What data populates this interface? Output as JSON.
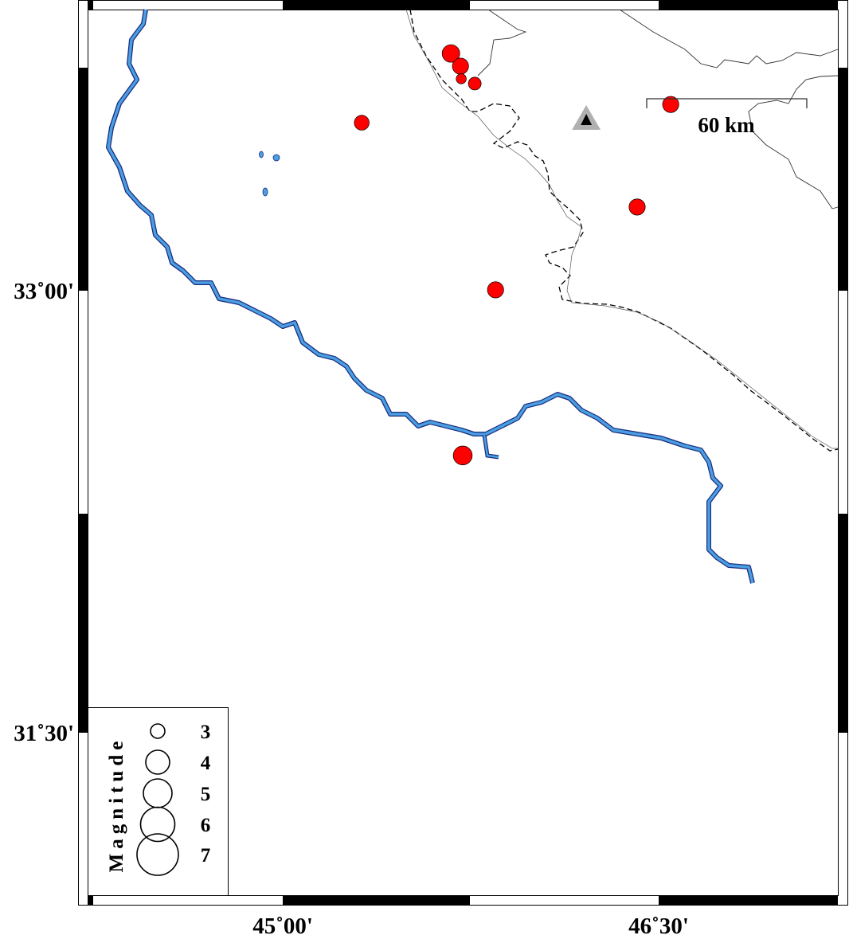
{
  "map": {
    "region": {
      "lon_min": 44.221,
      "lon_max": 47.215,
      "lat_min": 30.949,
      "lat_max": 33.954
    },
    "x_ticks": [
      {
        "lon": 45.0,
        "label": "45˚00'"
      },
      {
        "lon": 46.5,
        "label": "46˚30'"
      }
    ],
    "y_ticks": [
      {
        "lat": 33.0,
        "label": "33˚00'"
      },
      {
        "lat": 31.5,
        "label": "31˚30'"
      }
    ],
    "scale_bar": {
      "label": "60 km"
    },
    "colors": {
      "event": "#ff0000",
      "river": "#4a9fe0",
      "river_edge": "#1a2a80",
      "station": "#b0b0b0"
    },
    "station": {
      "lon": 46.211,
      "lat": 33.581,
      "icon": "triangle"
    },
    "events": [
      {
        "lon": 45.671,
        "lat": 33.805,
        "mag": 3.5
      },
      {
        "lon": 45.709,
        "lat": 33.762,
        "mag": 3.3
      },
      {
        "lon": 45.712,
        "lat": 33.719,
        "mag": 2.4
      },
      {
        "lon": 45.766,
        "lat": 33.703,
        "mag": 2.8
      },
      {
        "lon": 45.315,
        "lat": 33.57,
        "mag": 3.1
      },
      {
        "lon": 46.548,
        "lat": 33.632,
        "mag": 3.3
      },
      {
        "lon": 46.414,
        "lat": 33.284,
        "mag": 3.3
      },
      {
        "lon": 45.849,
        "lat": 33.003,
        "mag": 3.3
      },
      {
        "lon": 45.718,
        "lat": 32.441,
        "mag": 3.7
      }
    ]
  },
  "legend": {
    "title": "Magnitude",
    "items": [
      {
        "mag": 3,
        "label": "3"
      },
      {
        "mag": 4,
        "label": "4"
      },
      {
        "mag": 5,
        "label": "5"
      },
      {
        "mag": 6,
        "label": "6"
      },
      {
        "mag": 7,
        "label": "7"
      }
    ]
  }
}
